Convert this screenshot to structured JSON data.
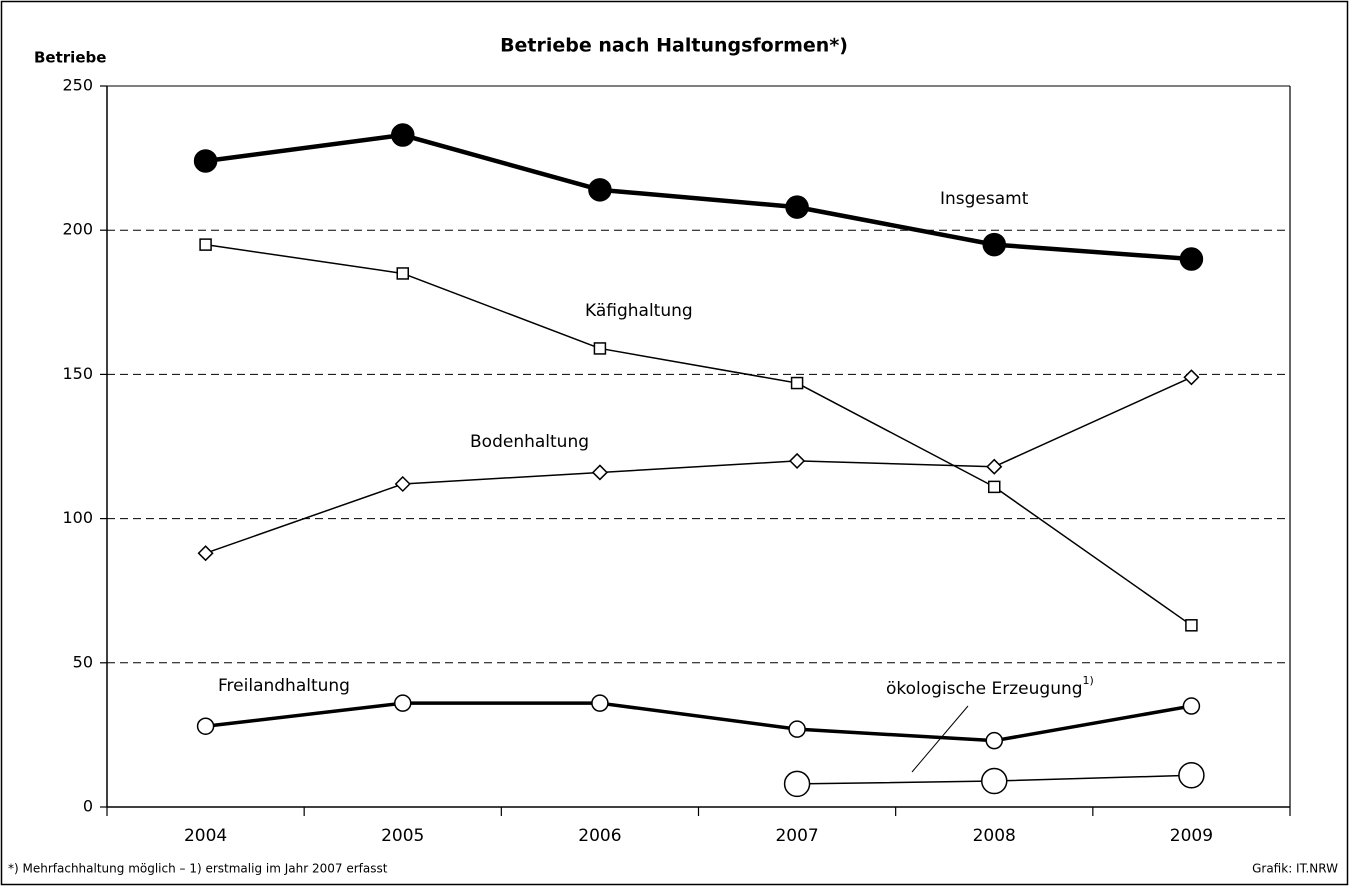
{
  "chart_data": {
    "type": "line",
    "title": "Betriebe nach Haltungsformen*)",
    "y_label": "Betriebe",
    "categories": [
      "2004",
      "2005",
      "2006",
      "2007",
      "2008",
      "2009"
    ],
    "series": [
      {
        "name": "Insgesamt",
        "color": "#000000",
        "marker": "filled-circle",
        "values": [
          224,
          233,
          214,
          208,
          195,
          190
        ]
      },
      {
        "name": "Käfighaltung",
        "color": "#000000",
        "marker": "square",
        "values": [
          195,
          185,
          159,
          147,
          111,
          63
        ]
      },
      {
        "name": "Bodenhaltung",
        "color": "#000000",
        "marker": "diamond",
        "values": [
          88,
          112,
          116,
          120,
          118,
          149
        ]
      },
      {
        "name": "Freilandhaltung",
        "color": "#000000",
        "marker": "open-circle",
        "values": [
          28,
          36,
          36,
          27,
          23,
          35
        ]
      },
      {
        "name": "ökologische Erzeugung",
        "name_superscript": "1)",
        "color": "#000000",
        "marker": "large-open-circle",
        "values": [
          null,
          null,
          null,
          8,
          9,
          11
        ]
      }
    ],
    "ylim": [
      0,
      250
    ],
    "yticks": [
      0,
      50,
      100,
      150,
      200,
      250
    ],
    "grid": true,
    "footnote": "*) Mehrfachhaltung möglich – 1) erstmalig im Jahr 2007 erfasst",
    "source": "Grafik: IT.NRW"
  }
}
